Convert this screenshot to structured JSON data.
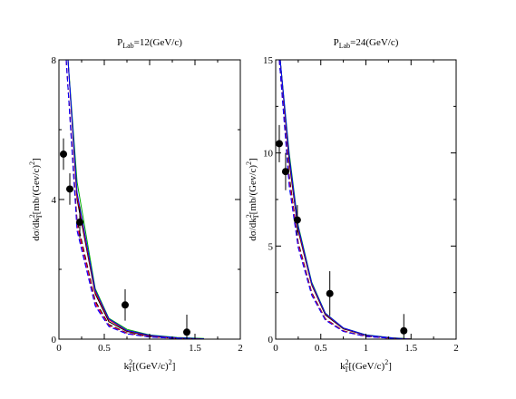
{
  "chart_data": [
    {
      "type": "line",
      "title": {
        "main": "P",
        "sub": "Lab",
        "rest": "=12(GeV/c)"
      },
      "xlabel": {
        "pre": "k",
        "sup": "2",
        "sub": "T",
        "rest": "[(GeV/c)",
        "sup2": "2",
        "end": "]"
      },
      "ylabel": {
        "pre": "dσ/dk",
        "sup": "2",
        "sub": "T",
        "rest": "[mb/(Gev/c)",
        "sup2": "2",
        "end": "]"
      },
      "xlim": [
        0,
        2
      ],
      "ylim": [
        0,
        8
      ],
      "xticks": [
        0,
        0.5,
        1,
        1.5,
        2
      ],
      "xticklabels": [
        "0",
        "0.5",
        "1",
        "1.5",
        "2"
      ],
      "yticks": [
        0,
        4,
        8
      ],
      "yticklabels": [
        "0",
        "4",
        "8"
      ],
      "points": [
        {
          "x": 0.05,
          "y": 5.3,
          "err": 0.45
        },
        {
          "x": 0.12,
          "y": 4.3,
          "err": 0.45
        },
        {
          "x": 0.23,
          "y": 3.35,
          "err": 0.45
        },
        {
          "x": 0.73,
          "y": 0.98,
          "err": 0.45
        },
        {
          "x": 1.41,
          "y": 0.2,
          "err": 0.5
        }
      ],
      "curves": [
        {
          "color": "#000000",
          "dash": false,
          "x": [
            0.1,
            0.2,
            0.4,
            0.55,
            0.75,
            1.0,
            1.3,
            1.6
          ],
          "y": [
            8.0,
            4.0,
            1.3,
            0.5,
            0.22,
            0.09,
            0.03,
            0.0
          ]
        },
        {
          "color": "#ff0000",
          "dash": false,
          "x": [
            0.1,
            0.2,
            0.4,
            0.55,
            0.75,
            1.0,
            1.3,
            1.6
          ],
          "y": [
            8.0,
            4.1,
            1.35,
            0.55,
            0.24,
            0.1,
            0.04,
            0.01
          ]
        },
        {
          "color": "#00aa00",
          "dash": false,
          "x": [
            0.1,
            0.2,
            0.4,
            0.55,
            0.75,
            1.0,
            1.3,
            1.6
          ],
          "y": [
            8.0,
            4.5,
            1.45,
            0.6,
            0.28,
            0.12,
            0.05,
            0.02
          ]
        },
        {
          "color": "#0000ff",
          "dash": false,
          "x": [
            0.1,
            0.2,
            0.4,
            0.55,
            0.75,
            1.0,
            1.3,
            1.6
          ],
          "y": [
            8.0,
            4.2,
            1.4,
            0.58,
            0.25,
            0.11,
            0.04,
            0.01
          ]
        },
        {
          "color": "#000000",
          "dash": true,
          "x": [
            0.08,
            0.2,
            0.4,
            0.55,
            0.75,
            1.0,
            1.3,
            1.6
          ],
          "y": [
            8.0,
            3.4,
            1.1,
            0.42,
            0.18,
            0.07,
            0.02,
            0.0
          ]
        },
        {
          "color": "#ff0000",
          "dash": true,
          "x": [
            0.08,
            0.2,
            0.4,
            0.55,
            0.75,
            1.0,
            1.3,
            1.6
          ],
          "y": [
            8.0,
            3.3,
            1.05,
            0.4,
            0.17,
            0.07,
            0.02,
            0.0
          ]
        },
        {
          "color": "#aa00aa",
          "dash": true,
          "x": [
            0.08,
            0.2,
            0.4,
            0.55,
            0.75,
            1.0,
            1.3,
            1.6
          ],
          "y": [
            8.0,
            3.2,
            1.0,
            0.38,
            0.16,
            0.06,
            0.02,
            0.0
          ]
        },
        {
          "color": "#0000ff",
          "dash": true,
          "x": [
            0.08,
            0.2,
            0.4,
            0.55,
            0.75,
            1.0,
            1.3,
            1.6
          ],
          "y": [
            8.0,
            3.1,
            0.95,
            0.36,
            0.15,
            0.06,
            0.02,
            0.0
          ]
        }
      ]
    },
    {
      "type": "line",
      "title": {
        "main": "P",
        "sub": "Lab",
        "rest": "=24(GeV/c)"
      },
      "xlabel": {
        "pre": "k",
        "sup": "2",
        "sub": "T",
        "rest": "[(GeV/c)",
        "sup2": "2",
        "end": "]"
      },
      "ylabel": {
        "pre": "dσ/dk",
        "sup": "2",
        "sub": "T",
        "rest": "[mb/(Gev/c)",
        "sup2": "2",
        "end": "]"
      },
      "xlim": [
        0,
        2
      ],
      "ylim": [
        0,
        15
      ],
      "xticks": [
        0,
        0.5,
        1,
        1.5,
        2
      ],
      "xticklabels": [
        "0",
        "0.5",
        "1",
        "1.5",
        "2"
      ],
      "yticks": [
        0,
        5,
        10,
        15
      ],
      "yticklabels": [
        "0",
        "5",
        "10",
        "15"
      ],
      "points": [
        {
          "x": 0.04,
          "y": 10.5,
          "err": 1.0
        },
        {
          "x": 0.11,
          "y": 9.0,
          "err": 1.0
        },
        {
          "x": 0.24,
          "y": 6.4,
          "err": 0.8
        },
        {
          "x": 0.6,
          "y": 2.45,
          "err": 1.2
        },
        {
          "x": 1.42,
          "y": 0.45,
          "err": 0.9
        }
      ],
      "curves": [
        {
          "color": "#000000",
          "dash": false,
          "x": [
            0.05,
            0.15,
            0.25,
            0.4,
            0.55,
            0.75,
            1.0,
            1.3,
            1.5
          ],
          "y": [
            15.0,
            9.5,
            5.8,
            2.9,
            1.3,
            0.55,
            0.2,
            0.05,
            0.0
          ]
        },
        {
          "color": "#ff0000",
          "dash": false,
          "x": [
            0.05,
            0.15,
            0.25,
            0.4,
            0.55,
            0.75,
            1.0,
            1.3,
            1.5
          ],
          "y": [
            15.0,
            9.7,
            5.9,
            2.95,
            1.35,
            0.58,
            0.21,
            0.06,
            0.0
          ]
        },
        {
          "color": "#00aa00",
          "dash": false,
          "x": [
            0.05,
            0.15,
            0.25,
            0.4,
            0.55,
            0.75,
            1.0,
            1.3,
            1.5
          ],
          "y": [
            15.0,
            10.0,
            6.1,
            3.05,
            1.4,
            0.6,
            0.23,
            0.07,
            0.01
          ]
        },
        {
          "color": "#0000ff",
          "dash": false,
          "x": [
            0.05,
            0.15,
            0.25,
            0.4,
            0.55,
            0.75,
            1.0,
            1.3,
            1.5
          ],
          "y": [
            15.0,
            9.8,
            6.0,
            3.0,
            1.38,
            0.6,
            0.22,
            0.06,
            0.0
          ]
        },
        {
          "color": "#000000",
          "dash": true,
          "x": [
            0.04,
            0.15,
            0.25,
            0.4,
            0.55,
            0.75,
            1.0,
            1.3,
            1.5
          ],
          "y": [
            15.0,
            8.8,
            5.2,
            2.5,
            1.1,
            0.45,
            0.15,
            0.04,
            0.0
          ]
        },
        {
          "color": "#ff0000",
          "dash": true,
          "x": [
            0.04,
            0.15,
            0.25,
            0.4,
            0.55,
            0.75,
            1.0,
            1.3,
            1.5
          ],
          "y": [
            15.0,
            8.6,
            5.1,
            2.45,
            1.08,
            0.44,
            0.15,
            0.04,
            0.0
          ]
        },
        {
          "color": "#aa00aa",
          "dash": true,
          "x": [
            0.04,
            0.15,
            0.25,
            0.4,
            0.55,
            0.75,
            1.0,
            1.3,
            1.5
          ],
          "y": [
            15.0,
            8.4,
            5.0,
            2.4,
            1.05,
            0.42,
            0.14,
            0.04,
            0.0
          ]
        },
        {
          "color": "#0000ff",
          "dash": true,
          "x": [
            0.04,
            0.15,
            0.25,
            0.4,
            0.55,
            0.75,
            1.0,
            1.3,
            1.5
          ],
          "y": [
            15.0,
            8.2,
            4.9,
            2.35,
            1.02,
            0.41,
            0.14,
            0.04,
            0.0
          ]
        }
      ]
    }
  ]
}
